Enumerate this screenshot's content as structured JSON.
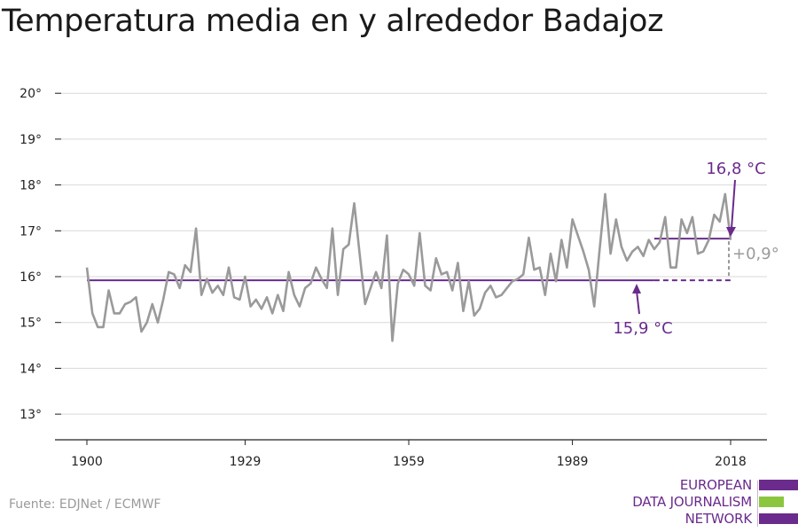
{
  "title": "Temperatura media en y alrededor Badajoz",
  "source": "Fuente: EDJNet / ECMWF",
  "logo": {
    "lines": [
      "EUROPEAN",
      "DATA JOURNALISM",
      "NETWORK"
    ],
    "colors": {
      "purple": "#6a2b8c",
      "green": "#8cc63f"
    }
  },
  "colors": {
    "line": "#9a9a9a",
    "baseline": "#6a2b8c",
    "grid": "#d9d9d9",
    "axis": "#222222"
  },
  "chart_data": {
    "type": "line",
    "title": "Temperatura media en y alrededor Badajoz",
    "xlabel": "",
    "ylabel": "",
    "xlim": [
      1900,
      2018
    ],
    "ylim": [
      12.5,
      20
    ],
    "x_ticks": [
      1900,
      1929,
      1959,
      1989,
      2018
    ],
    "x_tick_labels": [
      "1900",
      "1929",
      "1959",
      "1989",
      "2018"
    ],
    "y_ticks": [
      13,
      14,
      15,
      16,
      17,
      18,
      19,
      20
    ],
    "y_tick_labels": [
      "13°",
      "14°",
      "15°",
      "16°",
      "17°",
      "18°",
      "19°",
      "20°"
    ],
    "grid": true,
    "series": [
      {
        "x": [
          1900,
          1901,
          1902,
          1903,
          1904,
          1905,
          1906,
          1907,
          1908,
          1909,
          1910,
          1911,
          1912,
          1913,
          1914,
          1915,
          1916,
          1917,
          1918,
          1919,
          1920,
          1921,
          1922,
          1923,
          1924,
          1925,
          1926,
          1927,
          1928,
          1929,
          1930,
          1931,
          1932,
          1933,
          1934,
          1935,
          1936,
          1937,
          1938,
          1939,
          1940,
          1941,
          1942,
          1943,
          1944,
          1945,
          1946,
          1947,
          1948,
          1949,
          1950,
          1951,
          1952,
          1953,
          1954,
          1955,
          1956,
          1957,
          1958,
          1959,
          1960,
          1961,
          1962,
          1963,
          1964,
          1965,
          1966,
          1967,
          1968,
          1969,
          1970,
          1971,
          1972,
          1973,
          1974,
          1975,
          1976,
          1977,
          1978,
          1979,
          1980,
          1981,
          1982,
          1983,
          1984,
          1985,
          1986,
          1987,
          1988,
          1989,
          1990,
          1991,
          1992,
          1993,
          1994,
          1995,
          1996,
          1997,
          1998,
          1999,
          2000,
          2001,
          2002,
          2003,
          2004,
          2005,
          2006,
          2007,
          2008,
          2009,
          2010,
          2011,
          2012,
          2013,
          2014,
          2015,
          2016,
          2017,
          2018
        ],
        "values": [
          16.2,
          15.2,
          14.9,
          14.9,
          15.7,
          15.2,
          15.2,
          15.4,
          15.45,
          15.55,
          14.8,
          15.0,
          15.4,
          15.0,
          15.5,
          16.1,
          16.05,
          15.75,
          16.25,
          16.1,
          17.05,
          15.6,
          15.95,
          15.65,
          15.8,
          15.6,
          16.2,
          15.55,
          15.5,
          16.0,
          15.35,
          15.5,
          15.3,
          15.55,
          15.2,
          15.6,
          15.25,
          16.1,
          15.6,
          15.35,
          15.75,
          15.85,
          16.2,
          15.95,
          15.75,
          17.05,
          15.6,
          16.6,
          16.7,
          17.6,
          16.5,
          15.4,
          15.75,
          16.1,
          15.75,
          16.9,
          14.6,
          15.85,
          16.15,
          16.05,
          15.8,
          16.95,
          15.8,
          15.7,
          16.4,
          16.05,
          16.1,
          15.7,
          16.3,
          15.25,
          15.9,
          15.15,
          15.3,
          15.65,
          15.8,
          15.55,
          15.6,
          15.75,
          15.9,
          15.95,
          16.05,
          16.85,
          16.15,
          16.2,
          15.6,
          16.5,
          15.9,
          16.8,
          16.2,
          17.25,
          16.9,
          16.55,
          16.15,
          15.35,
          16.6,
          17.8,
          16.5,
          17.25,
          16.65,
          16.35,
          16.55,
          16.65,
          16.45,
          16.8,
          16.6,
          16.75,
          17.3,
          16.2,
          16.2,
          17.25,
          16.95,
          17.3,
          16.5,
          16.55,
          16.8,
          17.35,
          17.2,
          17.8,
          16.8
        ]
      }
    ],
    "reference_lines": [
      {
        "label": "15,9 °C",
        "value": 15.92,
        "from": 1900,
        "to": 2018
      },
      {
        "label": "16,8 °C",
        "value": 16.83,
        "from": 2004,
        "to": 2018
      }
    ],
    "difference_label": "+0,9°"
  }
}
